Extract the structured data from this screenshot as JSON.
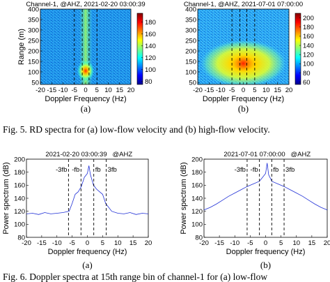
{
  "chart_data": [
    {
      "type": "heatmap",
      "title": "Channel-1, @AHZ, 2021-02-20 03:00:39",
      "xlabel": "Doppler Frequency (Hz)",
      "ylabel": "Range (m)",
      "xlim": [
        -20,
        20
      ],
      "ylim": [
        40,
        400
      ],
      "xticks": [
        -20,
        -15,
        -10,
        -5,
        0,
        5,
        10,
        15,
        20
      ],
      "yticks": [
        50,
        100,
        150,
        200,
        250,
        300,
        350,
        400
      ],
      "colorbar_ticks": [
        80,
        100,
        120,
        140,
        160,
        180
      ],
      "colorbar_range": [
        75,
        195
      ],
      "vlines_x": [
        -5,
        -1.5,
        1.5,
        5
      ],
      "peak": {
        "x": 0,
        "y": 105
      },
      "caption": "(a)"
    },
    {
      "type": "heatmap",
      "title": "Channel-1, @AHZ, 2021-07-01 07:00:00",
      "xlabel": "Doppler Frequency (Hz)",
      "ylabel": "",
      "xlim": [
        -20,
        20
      ],
      "ylim": [
        40,
        400
      ],
      "xticks": [
        -20,
        -15,
        -10,
        -5,
        0,
        5,
        10,
        15,
        20
      ],
      "yticks": [
        50,
        100,
        150,
        200,
        250,
        300,
        350,
        400
      ],
      "colorbar_ticks": [
        60,
        80,
        100,
        120,
        140,
        160,
        180,
        200
      ],
      "colorbar_range": [
        55,
        210
      ],
      "vlines_x": [
        -5,
        -1.5,
        1.5,
        5
      ],
      "peak": {
        "x": 0,
        "y": 140
      },
      "caption": "(b)"
    },
    {
      "type": "line",
      "title": "2021-02-20 03:00:39",
      "title_tag": "@AHZ",
      "xlabel": "Doppler frequency (Hz)",
      "ylabel": "Power spectrum (dB)",
      "xlim": [
        -20,
        20
      ],
      "ylim": [
        80,
        200
      ],
      "xticks": [
        -20,
        -15,
        -10,
        -5,
        0,
        5,
        10,
        15,
        20
      ],
      "yticks": [
        80,
        100,
        120,
        140,
        160,
        180,
        200
      ],
      "vlines": [
        {
          "x": -6.2,
          "label": "-3fb"
        },
        {
          "x": -2.1,
          "label": "-fb"
        },
        {
          "x": 2.1,
          "label": "fb"
        },
        {
          "x": 6.2,
          "label": "3fb"
        }
      ],
      "series": [
        {
          "color": "#1f2fd6",
          "x": [
            -20,
            -18,
            -16,
            -14,
            -12,
            -10,
            -8,
            -6,
            -5,
            -4,
            -3,
            -2,
            -1,
            0,
            0.5,
            1,
            2,
            3,
            4,
            5,
            6,
            8,
            10,
            12,
            14,
            16,
            18,
            20
          ],
          "y": [
            116,
            117,
            115,
            118,
            116,
            117,
            118,
            120,
            132,
            146,
            150,
            158,
            172,
            178,
            190,
            176,
            160,
            154,
            150,
            146,
            132,
            120,
            117,
            116,
            118,
            115,
            117,
            116
          ]
        }
      ],
      "caption": "(a)"
    },
    {
      "type": "line",
      "title": "2021-07-01 07:00:00",
      "title_tag": "@AHZ",
      "xlabel": "Doppler frequency (Hz)",
      "ylabel": "Power spectrum (dB)",
      "xlim": [
        -20,
        20
      ],
      "ylim": [
        80,
        200
      ],
      "xticks": [
        -20,
        -15,
        -10,
        -5,
        0,
        5,
        10,
        15,
        20
      ],
      "yticks": [
        80,
        100,
        120,
        140,
        160,
        180,
        200
      ],
      "vlines": [
        {
          "x": -6.0,
          "label": "-3fb"
        },
        {
          "x": -2.0,
          "label": "-fb"
        },
        {
          "x": 2.0,
          "label": "fb"
        },
        {
          "x": 6.0,
          "label": "3fb"
        }
      ],
      "series": [
        {
          "color": "#1f2fd6",
          "x": [
            -20,
            -18,
            -16,
            -14,
            -12,
            -10,
            -8,
            -6,
            -4,
            -2,
            -1,
            0,
            0.5,
            1,
            2,
            4,
            6,
            8,
            10,
            12,
            14,
            16,
            18,
            20
          ],
          "y": [
            122,
            126,
            131,
            137,
            143,
            148,
            153,
            158,
            162,
            166,
            172,
            178,
            194,
            176,
            166,
            162,
            158,
            153,
            148,
            143,
            137,
            131,
            126,
            122
          ]
        }
      ],
      "caption": "(b)"
    }
  ],
  "captions": {
    "fig5": "Fig. 5.    RD spectra for (a) low-flow velocity and (b) high-flow velocity.",
    "fig6": "Fig. 6.    Doppler spectra at 15th range bin of channel-1 for (a) low-flow"
  }
}
